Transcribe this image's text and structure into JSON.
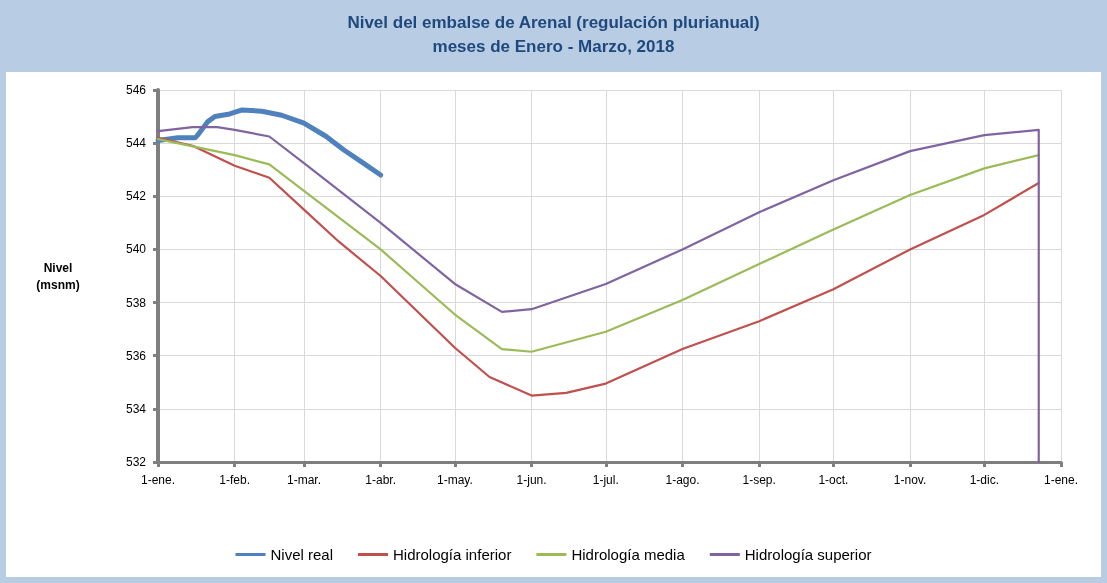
{
  "chart_data": {
    "type": "line",
    "title": "Nivel del embalse de Arenal (regulación plurianual)\nmeses de Enero - Marzo, 2018",
    "ylabel": "Nivel\n(msnm)",
    "xlim": [
      "2018-01-01",
      "2019-01-01"
    ],
    "xticks": [
      {
        "value": "2018-01-01",
        "label": "1-ene."
      },
      {
        "value": "2018-02-01",
        "label": "1-feb."
      },
      {
        "value": "2018-03-01",
        "label": "1-mar."
      },
      {
        "value": "2018-04-01",
        "label": "1-abr."
      },
      {
        "value": "2018-05-01",
        "label": "1-may."
      },
      {
        "value": "2018-06-01",
        "label": "1-jun."
      },
      {
        "value": "2018-07-01",
        "label": "1-jul."
      },
      {
        "value": "2018-08-01",
        "label": "1-ago."
      },
      {
        "value": "2018-09-01",
        "label": "1-sep."
      },
      {
        "value": "2018-10-01",
        "label": "1-oct."
      },
      {
        "value": "2018-11-01",
        "label": "1-nov."
      },
      {
        "value": "2018-12-01",
        "label": "1-dic."
      },
      {
        "value": "2019-01-01",
        "label": "1-ene."
      }
    ],
    "ylim": [
      532,
      546
    ],
    "yticks": [
      532,
      534,
      536,
      538,
      540,
      542,
      544,
      546
    ],
    "grid": true,
    "legend": "bottom",
    "marker": "none",
    "line_style": "solid",
    "series": [
      {
        "name": "Nivel real",
        "color": "#4f81bd",
        "x": [
          "2018-01-01",
          "2018-01-09",
          "2018-01-16",
          "2018-01-17",
          "2018-01-21",
          "2018-01-24",
          "2018-01-30",
          "2018-02-04",
          "2018-02-12",
          "2018-02-20",
          "2018-03-01",
          "2018-03-10",
          "2018-03-17",
          "2018-03-25",
          "2018-04-01"
        ],
        "values": [
          544.1,
          544.2,
          544.2,
          544.3,
          544.8,
          545.0,
          545.1,
          545.25,
          545.2,
          545.05,
          544.75,
          544.25,
          543.75,
          543.25,
          542.8
        ]
      },
      {
        "name": "Hidrología inferior",
        "color": "#c0504d",
        "x": [
          "2018-01-01",
          "2018-01-15",
          "2018-02-01",
          "2018-02-15",
          "2018-03-01",
          "2018-03-15",
          "2018-04-01",
          "2018-05-01",
          "2018-05-15",
          "2018-06-01",
          "2018-06-15",
          "2018-07-01",
          "2018-08-01",
          "2018-09-01",
          "2018-10-01",
          "2018-11-01",
          "2018-12-01",
          "2018-12-12",
          "2018-12-23"
        ],
        "values": [
          544.2,
          543.9,
          543.15,
          542.7,
          541.5,
          540.3,
          539.0,
          536.3,
          535.2,
          534.5,
          534.6,
          534.95,
          536.25,
          537.3,
          538.5,
          540.0,
          541.3,
          541.9,
          542.5
        ]
      },
      {
        "name": "Hidrología media",
        "color": "#9bbb59",
        "x": [
          "2018-01-01",
          "2018-02-01",
          "2018-02-15",
          "2018-03-01",
          "2018-04-01",
          "2018-05-01",
          "2018-05-20",
          "2018-06-01",
          "2018-07-01",
          "2018-08-01",
          "2018-09-01",
          "2018-10-01",
          "2018-11-01",
          "2018-12-01",
          "2018-12-23"
        ],
        "values": [
          544.15,
          543.55,
          543.2,
          542.2,
          540.0,
          537.55,
          536.25,
          536.15,
          536.9,
          538.1,
          539.45,
          540.75,
          542.05,
          543.05,
          543.55
        ]
      },
      {
        "name": "Hidrología superior",
        "color": "#8064a2",
        "x": [
          "2018-01-01",
          "2018-01-15",
          "2018-01-25",
          "2018-02-01",
          "2018-02-15",
          "2018-03-01",
          "2018-04-01",
          "2018-05-01",
          "2018-05-20",
          "2018-06-01",
          "2018-07-01",
          "2018-08-01",
          "2018-09-01",
          "2018-10-01",
          "2018-11-01",
          "2018-12-01",
          "2018-12-23",
          "2018-12-23"
        ],
        "values": [
          544.45,
          544.6,
          544.6,
          544.5,
          544.25,
          543.25,
          541.0,
          538.7,
          537.65,
          537.75,
          538.7,
          540.0,
          541.4,
          542.6,
          543.7,
          544.3,
          544.5,
          532
        ]
      }
    ]
  }
}
